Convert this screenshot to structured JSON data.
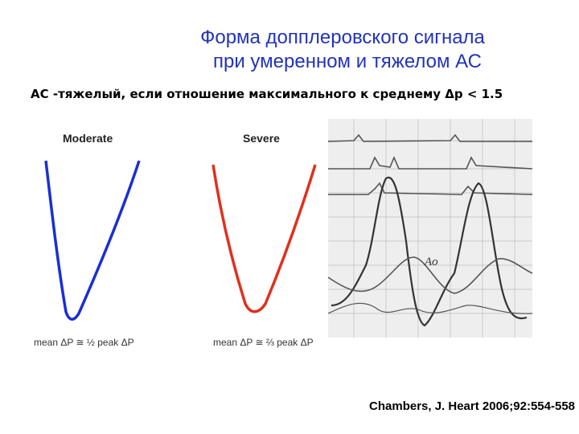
{
  "title": [
    "Форма допплеровского сигнала",
    "при умеренном и тяжелом АС"
  ],
  "subtitle": "АС -тяжелый, если отношение максимального к среднему Δp < 1.5",
  "panels": [
    {
      "label": "Moderate",
      "formula": "mean ΔP ≅ ½ peak ΔP"
    },
    {
      "label": "Severe",
      "formula": "mean ΔP ≅ ⅔ peak ΔP"
    }
  ],
  "image": {
    "label": "Ao"
  },
  "citation": "Chambers, J. Heart 2006;92:554-558"
}
